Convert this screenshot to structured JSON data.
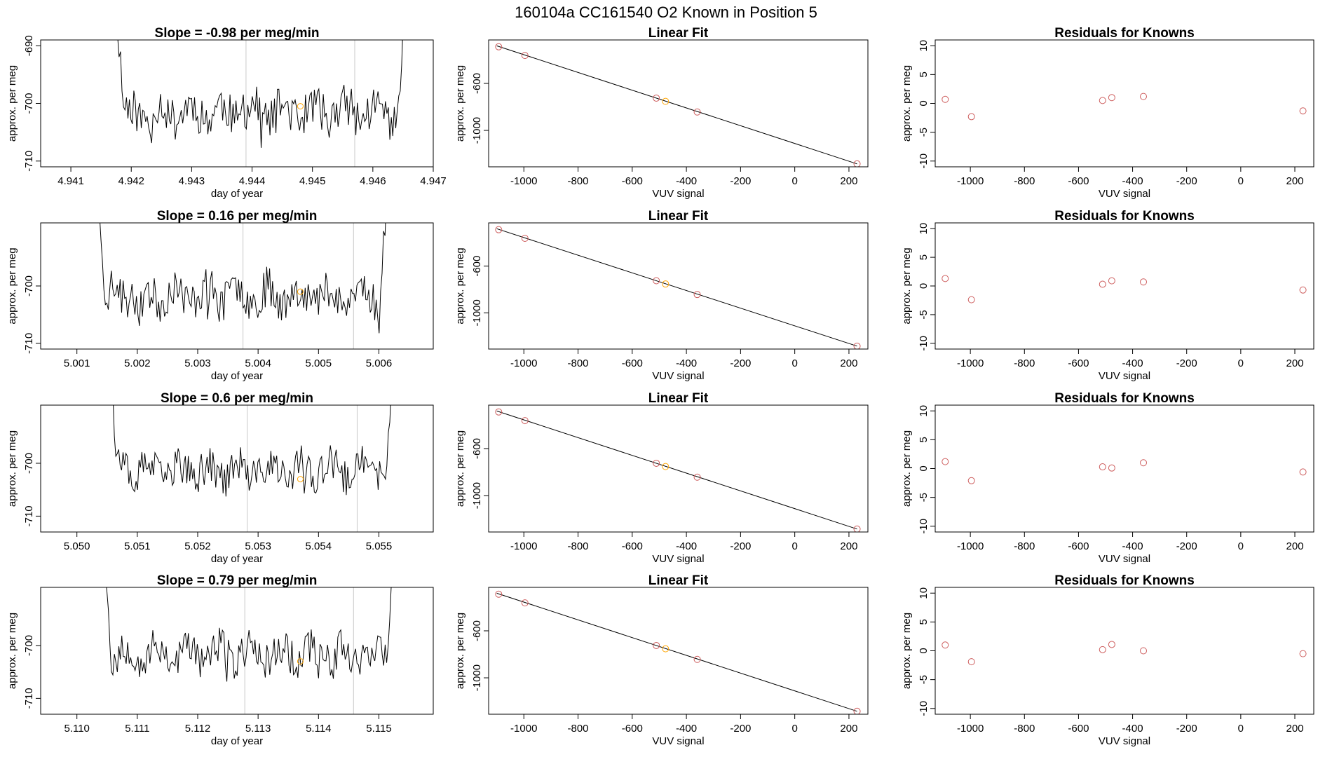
{
  "page_title": "160104a      CC161540    O2 Known in Position  5",
  "colors": {
    "point_red": "#cd5c5c",
    "point_orange": "#ffa500",
    "trace": "#000000",
    "marker_line": "#c8c8c8"
  },
  "chart_data": [
    {
      "type": "line",
      "title": "Slope =  -0.98  per meg/min",
      "xlabel": "day of year",
      "ylabel": "approx. per meg",
      "xlim": [
        4.9405,
        4.947
      ],
      "ylim": [
        -711,
        -689
      ],
      "xticks": [
        4.941,
        4.942,
        4.943,
        4.944,
        4.945,
        4.946,
        4.947
      ],
      "xtick_labels": [
        "4.941",
        "4.942",
        "4.943",
        "4.944",
        "4.945",
        "4.946",
        "4.947"
      ],
      "yticks": [
        -690,
        -700,
        -710
      ],
      "ytick_labels": [
        "-690",
        "-700",
        "-710"
      ],
      "trace_start": 4.9417,
      "trace_end": 4.9466,
      "vlines": [
        4.9439,
        4.9457
      ],
      "marker": {
        "x": 4.9448,
        "y": -700.5,
        "color": "orange"
      },
      "seed": 11
    },
    {
      "type": "scatter",
      "title": "Linear Fit",
      "xlabel": "VUV signal",
      "ylabel": "approx. per meg",
      "xlim": [
        -1130,
        270
      ],
      "ylim": [
        -1310,
        -230
      ],
      "xticks": [
        -1000,
        -800,
        -600,
        -400,
        -200,
        0,
        200
      ],
      "xtick_labels": [
        "-1000",
        "-800",
        "-600",
        "-400",
        "-200",
        "0",
        "200"
      ],
      "yticks": [
        -600,
        -1000
      ],
      "ytick_labels": [
        "-600",
        "-1000"
      ],
      "fit_line": {
        "x": [
          -1100,
          230
        ],
        "y": [
          -280,
          -1285
        ]
      },
      "points": [
        {
          "x": -1093,
          "y": -288,
          "color": "red"
        },
        {
          "x": -996,
          "y": -362,
          "color": "red"
        },
        {
          "x": -511,
          "y": -725,
          "color": "red"
        },
        {
          "x": -477,
          "y": -753,
          "color": "orange"
        },
        {
          "x": -360,
          "y": -843,
          "color": "red"
        },
        {
          "x": 230,
          "y": -1285,
          "color": "red"
        }
      ]
    },
    {
      "type": "scatter",
      "title": "Residuals for Knowns",
      "xlabel": "VUV signal",
      "ylabel": "approx. per meg",
      "xlim": [
        -1130,
        270
      ],
      "ylim": [
        -11,
        11
      ],
      "xticks": [
        -1000,
        -800,
        -600,
        -400,
        -200,
        0,
        200
      ],
      "xtick_labels": [
        "-1000",
        "-800",
        "-600",
        "-400",
        "-200",
        "0",
        "200"
      ],
      "yticks": [
        10,
        5,
        0,
        -5,
        -10
      ],
      "ytick_labels": [
        "10",
        "5",
        "0",
        "-5",
        "-10"
      ],
      "points": [
        {
          "x": -1093,
          "y": 0.7,
          "color": "red"
        },
        {
          "x": -996,
          "y": -2.3,
          "color": "red"
        },
        {
          "x": -511,
          "y": 0.5,
          "color": "red"
        },
        {
          "x": -477,
          "y": 1.0,
          "color": "red"
        },
        {
          "x": -360,
          "y": 1.2,
          "color": "red"
        },
        {
          "x": 230,
          "y": -1.3,
          "color": "red"
        }
      ]
    },
    {
      "type": "line",
      "title": "Slope =  0.16  per meg/min",
      "xlabel": "day of year",
      "ylabel": "approx. per meg",
      "xlim": [
        5.0004,
        5.0069
      ],
      "ylim": [
        -711,
        -689
      ],
      "xticks": [
        5.001,
        5.002,
        5.003,
        5.004,
        5.005,
        5.006
      ],
      "xtick_labels": [
        "5.001",
        "5.002",
        "5.003",
        "5.004",
        "5.005",
        "5.006"
      ],
      "yticks": [
        -700,
        -710
      ],
      "ytick_labels": [
        "-700",
        "-710"
      ],
      "trace_start": 5.0013,
      "trace_end": 5.0062,
      "vlines": [
        5.00375,
        5.00558
      ],
      "marker": {
        "x": 5.0047,
        "y": -701,
        "color": "orange"
      },
      "seed": 23
    },
    {
      "type": "scatter",
      "title": "Linear Fit",
      "xlabel": "VUV signal",
      "ylabel": "approx. per meg",
      "xlim": [
        -1130,
        270
      ],
      "ylim": [
        -1310,
        -230
      ],
      "xticks": [
        -1000,
        -800,
        -600,
        -400,
        -200,
        0,
        200
      ],
      "xtick_labels": [
        "-1000",
        "-800",
        "-600",
        "-400",
        "-200",
        "0",
        "200"
      ],
      "yticks": [
        -600,
        -1000
      ],
      "ytick_labels": [
        "-600",
        "-1000"
      ],
      "fit_line": {
        "x": [
          -1100,
          230
        ],
        "y": [
          -280,
          -1285
        ]
      },
      "points": [
        {
          "x": -1093,
          "y": -288,
          "color": "red"
        },
        {
          "x": -996,
          "y": -362,
          "color": "red"
        },
        {
          "x": -511,
          "y": -725,
          "color": "red"
        },
        {
          "x": -477,
          "y": -753,
          "color": "orange"
        },
        {
          "x": -360,
          "y": -843,
          "color": "red"
        },
        {
          "x": 230,
          "y": -1285,
          "color": "red"
        }
      ]
    },
    {
      "type": "scatter",
      "title": "Residuals for Knowns",
      "xlabel": "VUV signal",
      "ylabel": "approx. per meg",
      "xlim": [
        -1130,
        270
      ],
      "ylim": [
        -11,
        11
      ],
      "xticks": [
        -1000,
        -800,
        -600,
        -400,
        -200,
        0,
        200
      ],
      "xtick_labels": [
        "-1000",
        "-800",
        "-600",
        "-400",
        "-200",
        "0",
        "200"
      ],
      "yticks": [
        10,
        5,
        0,
        -5,
        -10
      ],
      "ytick_labels": [
        "10",
        "5",
        "0",
        "-5",
        "-10"
      ],
      "points": [
        {
          "x": -1093,
          "y": 1.3,
          "color": "red"
        },
        {
          "x": -996,
          "y": -2.4,
          "color": "red"
        },
        {
          "x": -511,
          "y": 0.3,
          "color": "red"
        },
        {
          "x": -477,
          "y": 0.9,
          "color": "red"
        },
        {
          "x": -360,
          "y": 0.7,
          "color": "red"
        },
        {
          "x": 230,
          "y": -0.7,
          "color": "red"
        }
      ]
    },
    {
      "type": "line",
      "title": "Slope =  0.6  per meg/min",
      "xlabel": "day of year",
      "ylabel": "approx. per meg",
      "xlim": [
        5.0494,
        5.0559
      ],
      "ylim": [
        -713,
        -689
      ],
      "xticks": [
        5.05,
        5.051,
        5.052,
        5.053,
        5.054,
        5.055
      ],
      "xtick_labels": [
        "5.050",
        "5.051",
        "5.052",
        "5.053",
        "5.054",
        "5.055"
      ],
      "yticks": [
        -700,
        -710
      ],
      "ytick_labels": [
        "-700",
        "-710"
      ],
      "trace_start": 5.0505,
      "trace_end": 5.0553,
      "vlines": [
        5.05282,
        5.05464
      ],
      "marker": {
        "x": 5.0537,
        "y": -703,
        "color": "orange"
      },
      "seed": 37
    },
    {
      "type": "scatter",
      "title": "Linear Fit",
      "xlabel": "VUV signal",
      "ylabel": "approx. per meg",
      "xlim": [
        -1130,
        270
      ],
      "ylim": [
        -1310,
        -230
      ],
      "xticks": [
        -1000,
        -800,
        -600,
        -400,
        -200,
        0,
        200
      ],
      "xtick_labels": [
        "-1000",
        "-800",
        "-600",
        "-400",
        "-200",
        "0",
        "200"
      ],
      "yticks": [
        -600,
        -1000
      ],
      "ytick_labels": [
        "-600",
        "-1000"
      ],
      "fit_line": {
        "x": [
          -1100,
          230
        ],
        "y": [
          -280,
          -1285
        ]
      },
      "points": [
        {
          "x": -1093,
          "y": -288,
          "color": "red"
        },
        {
          "x": -996,
          "y": -362,
          "color": "red"
        },
        {
          "x": -511,
          "y": -725,
          "color": "red"
        },
        {
          "x": -477,
          "y": -753,
          "color": "orange"
        },
        {
          "x": -360,
          "y": -843,
          "color": "red"
        },
        {
          "x": 230,
          "y": -1285,
          "color": "red"
        }
      ]
    },
    {
      "type": "scatter",
      "title": "Residuals for Knowns",
      "xlabel": "VUV signal",
      "ylabel": "approx. per meg",
      "xlim": [
        -1130,
        270
      ],
      "ylim": [
        -11,
        11
      ],
      "xticks": [
        -1000,
        -800,
        -600,
        -400,
        -200,
        0,
        200
      ],
      "xtick_labels": [
        "-1000",
        "-800",
        "-600",
        "-400",
        "-200",
        "0",
        "200"
      ],
      "yticks": [
        10,
        5,
        0,
        -5,
        -10
      ],
      "ytick_labels": [
        "10",
        "5",
        "0",
        "-5",
        "-10"
      ],
      "points": [
        {
          "x": -1093,
          "y": 1.2,
          "color": "red"
        },
        {
          "x": -996,
          "y": -2.1,
          "color": "red"
        },
        {
          "x": -511,
          "y": 0.3,
          "color": "red"
        },
        {
          "x": -477,
          "y": 0.1,
          "color": "red"
        },
        {
          "x": -360,
          "y": 1.0,
          "color": "red"
        },
        {
          "x": 230,
          "y": -0.6,
          "color": "red"
        }
      ]
    },
    {
      "type": "line",
      "title": "Slope =  0.79  per meg/min",
      "xlabel": "day of year",
      "ylabel": "approx. per meg",
      "xlim": [
        5.1094,
        5.1159
      ],
      "ylim": [
        -713,
        -689
      ],
      "xticks": [
        5.11,
        5.111,
        5.112,
        5.113,
        5.114,
        5.115
      ],
      "xtick_labels": [
        "5.110",
        "5.111",
        "5.112",
        "5.113",
        "5.114",
        "5.115"
      ],
      "yticks": [
        -700,
        -710
      ],
      "ytick_labels": [
        "-700",
        "-710"
      ],
      "trace_start": 5.1104,
      "trace_end": 5.1153,
      "vlines": [
        5.11278,
        5.11458
      ],
      "marker": {
        "x": 5.1137,
        "y": -703,
        "color": "orange"
      },
      "seed": 53
    },
    {
      "type": "scatter",
      "title": "Linear Fit",
      "xlabel": "VUV signal",
      "ylabel": "approx. per meg",
      "xlim": [
        -1130,
        270
      ],
      "ylim": [
        -1310,
        -230
      ],
      "xticks": [
        -1000,
        -800,
        -600,
        -400,
        -200,
        0,
        200
      ],
      "xtick_labels": [
        "-1000",
        "-800",
        "-600",
        "-400",
        "-200",
        "0",
        "200"
      ],
      "yticks": [
        -600,
        -1000
      ],
      "ytick_labels": [
        "-600",
        "-1000"
      ],
      "fit_line": {
        "x": [
          -1100,
          230
        ],
        "y": [
          -280,
          -1285
        ]
      },
      "points": [
        {
          "x": -1093,
          "y": -288,
          "color": "red"
        },
        {
          "x": -996,
          "y": -362,
          "color": "red"
        },
        {
          "x": -511,
          "y": -725,
          "color": "red"
        },
        {
          "x": -477,
          "y": -753,
          "color": "orange"
        },
        {
          "x": -360,
          "y": -843,
          "color": "red"
        },
        {
          "x": 230,
          "y": -1285,
          "color": "red"
        }
      ]
    },
    {
      "type": "scatter",
      "title": "Residuals for Knowns",
      "xlabel": "VUV signal",
      "ylabel": "approx. per meg",
      "xlim": [
        -1130,
        270
      ],
      "ylim": [
        -11,
        11
      ],
      "xticks": [
        -1000,
        -800,
        -600,
        -400,
        -200,
        0,
        200
      ],
      "xtick_labels": [
        "-1000",
        "-800",
        "-600",
        "-400",
        "-200",
        "0",
        "200"
      ],
      "yticks": [
        10,
        5,
        0,
        -5,
        -10
      ],
      "ytick_labels": [
        "10",
        "5",
        "0",
        "-5",
        "-10"
      ],
      "points": [
        {
          "x": -1093,
          "y": 1.0,
          "color": "red"
        },
        {
          "x": -996,
          "y": -1.9,
          "color": "red"
        },
        {
          "x": -511,
          "y": 0.2,
          "color": "red"
        },
        {
          "x": -477,
          "y": 1.1,
          "color": "red"
        },
        {
          "x": -360,
          "y": 0.0,
          "color": "red"
        },
        {
          "x": 230,
          "y": -0.5,
          "color": "red"
        }
      ]
    }
  ]
}
